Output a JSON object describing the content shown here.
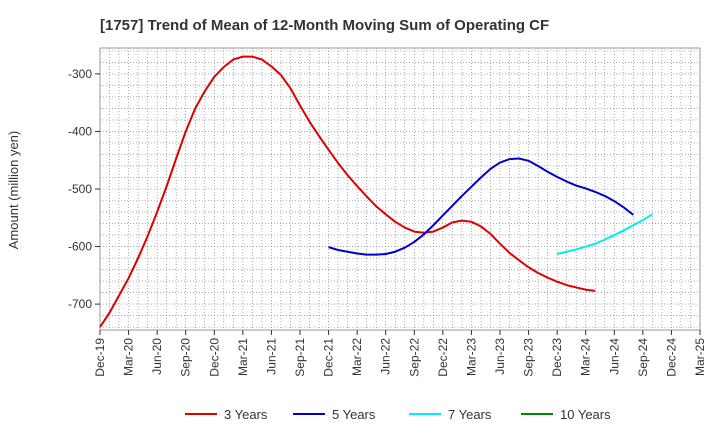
{
  "chart_data": {
    "type": "line",
    "title": "[1757]  Trend of Mean of 12-Month Moving Sum of Operating CF",
    "xlabel": "",
    "ylabel": "Amount (million yen)",
    "ylim": [
      -745,
      -255
    ],
    "yticks": [
      -300,
      -400,
      -500,
      -600,
      -700
    ],
    "ytick_labels": [
      "-300",
      "-400",
      "-500",
      "-600",
      "-700"
    ],
    "x_ticks": [
      "Dec-19",
      "Mar-20",
      "Jun-20",
      "Sep-20",
      "Dec-20",
      "Mar-21",
      "Jun-21",
      "Sep-21",
      "Dec-21",
      "Mar-22",
      "Jun-22",
      "Sep-22",
      "Dec-22",
      "Mar-23",
      "Jun-23",
      "Sep-23",
      "Dec-23",
      "Mar-24",
      "Jun-24",
      "Sep-24",
      "Dec-24",
      "Mar-25"
    ],
    "grid": true,
    "legend_position": "bottom",
    "series": [
      {
        "name": "3 Years",
        "color": "#dd0000",
        "start_index": 0,
        "values": [
          -740,
          -715,
          -685,
          -655,
          -620,
          -582,
          -540,
          -495,
          -447,
          -400,
          -360,
          -330,
          -305,
          -288,
          -275,
          -270,
          -270,
          -275,
          -287,
          -302,
          -325,
          -355,
          -383,
          -408,
          -432,
          -455,
          -476,
          -495,
          -513,
          -530,
          -544,
          -557,
          -567,
          -574,
          -576,
          -574,
          -567,
          -558,
          -555,
          -557,
          -565,
          -578,
          -595,
          -611,
          -624,
          -636,
          -646,
          -654,
          -661,
          -667,
          -671,
          -675,
          -677
        ]
      },
      {
        "name": "5 Years",
        "color": "#0000cc",
        "start_index": 24,
        "values": [
          -601,
          -606,
          -609,
          -612,
          -614,
          -614,
          -613,
          -609,
          -602,
          -592,
          -579,
          -563,
          -546,
          -529,
          -512,
          -496,
          -480,
          -465,
          -454,
          -448,
          -447,
          -451,
          -460,
          -470,
          -479,
          -487,
          -494,
          -499,
          -505,
          -512,
          -521,
          -532,
          -545
        ]
      },
      {
        "name": "7 Years",
        "color": "#00eeee",
        "start_index": 48,
        "values": [
          -613,
          -609,
          -605,
          -600,
          -595,
          -588,
          -580,
          -572,
          -563,
          -554,
          -544
        ]
      },
      {
        "name": "10 Years",
        "color": "#008800",
        "start_index": 0,
        "values": []
      }
    ]
  }
}
